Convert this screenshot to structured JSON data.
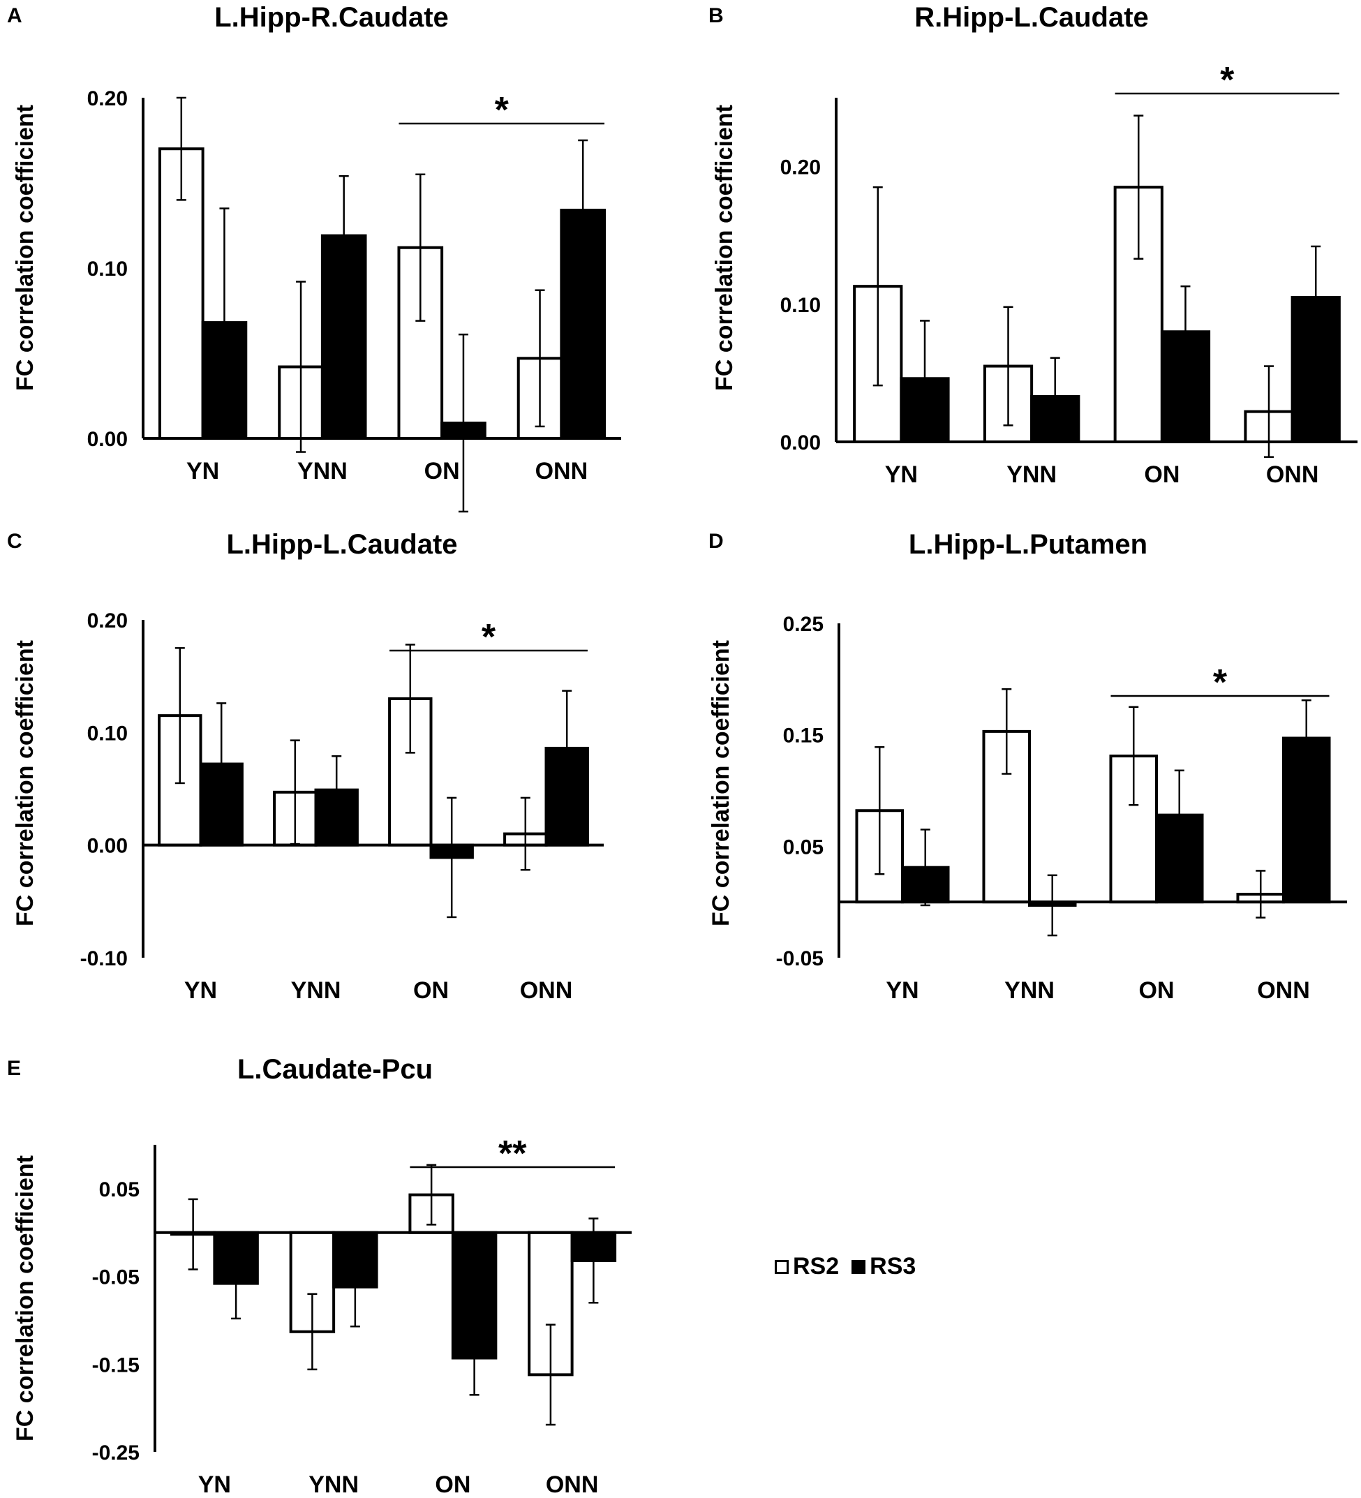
{
  "legend": [
    {
      "label": "RS2",
      "color": "#ffffff"
    },
    {
      "label": "RS3",
      "color": "#000000"
    }
  ],
  "colors": {
    "rs2": "#ffffff",
    "rs3": "#000000",
    "stroke": "#000000"
  },
  "chart_data": [
    {
      "panel": "A",
      "type": "bar",
      "title": "L.Hipp-R.Caudate",
      "ylabel": "FC correlation coefficient",
      "xlabel": "",
      "categories": [
        "YN",
        "YNN",
        "ON",
        "ONN"
      ],
      "ylim": [
        0.0,
        0.2
      ],
      "yticks": [
        "0.00",
        "0.10",
        "0.20"
      ],
      "series": [
        {
          "name": "RS2",
          "values": [
            0.17,
            0.042,
            0.112,
            0.047
          ],
          "errors": [
            0.03,
            0.05,
            0.043,
            0.04
          ]
        },
        {
          "name": "RS3",
          "values": [
            0.068,
            0.119,
            0.009,
            0.134
          ],
          "errors": [
            0.067,
            0.035,
            0.052,
            0.041
          ]
        }
      ],
      "significance": {
        "from": "ON",
        "to": "ONN",
        "label": "*"
      }
    },
    {
      "panel": "B",
      "type": "bar",
      "title": "R.Hipp-L.Caudate",
      "ylabel": "FC correlation coefficient",
      "xlabel": "",
      "categories": [
        "YN",
        "YNN",
        "ON",
        "ONN"
      ],
      "ylim": [
        0.0,
        0.25
      ],
      "yticks": [
        "0.00",
        "0.10",
        "0.20"
      ],
      "series": [
        {
          "name": "RS2",
          "values": [
            0.113,
            0.055,
            0.185,
            0.022
          ],
          "errors": [
            0.072,
            0.043,
            0.052,
            0.033
          ]
        },
        {
          "name": "RS3",
          "values": [
            0.046,
            0.033,
            0.08,
            0.105
          ],
          "errors": [
            0.042,
            0.028,
            0.033,
            0.037
          ]
        }
      ],
      "significance": {
        "from": "ON",
        "to": "ONN",
        "label": "*"
      }
    },
    {
      "panel": "C",
      "type": "bar",
      "title": "L.Hipp-L.Caudate",
      "ylabel": "FC correlation coefficient",
      "xlabel": "",
      "categories": [
        "YN",
        "YNN",
        "ON",
        "ONN"
      ],
      "ylim": [
        -0.1,
        0.2
      ],
      "yticks": [
        "-0.10",
        "0.00",
        "0.10",
        "0.20"
      ],
      "series": [
        {
          "name": "RS2",
          "values": [
            0.115,
            0.047,
            0.13,
            0.01
          ],
          "errors": [
            0.06,
            0.046,
            0.048,
            0.032
          ]
        },
        {
          "name": "RS3",
          "values": [
            0.072,
            0.049,
            -0.011,
            0.086
          ],
          "errors": [
            0.054,
            0.03,
            0.053,
            0.051
          ]
        }
      ],
      "significance": {
        "from": "ON",
        "to": "ONN",
        "label": "*"
      }
    },
    {
      "panel": "D",
      "type": "bar",
      "title": "L.Hipp-L.Putamen",
      "ylabel": "FC correlation coefficient",
      "xlabel": "",
      "categories": [
        "YN",
        "YNN",
        "ON",
        "ONN"
      ],
      "ylim": [
        -0.05,
        0.25
      ],
      "yticks": [
        "-0.05",
        "0.05",
        "0.15",
        "0.25"
      ],
      "series": [
        {
          "name": "RS2",
          "values": [
            0.082,
            0.153,
            0.131,
            0.007
          ],
          "errors": [
            0.057,
            0.038,
            0.044,
            0.021
          ]
        },
        {
          "name": "RS3",
          "values": [
            0.031,
            -0.003,
            0.078,
            0.147
          ],
          "errors": [
            0.034,
            0.027,
            0.04,
            0.034
          ]
        }
      ],
      "significance": {
        "from": "ON",
        "to": "ONN",
        "label": "*"
      }
    },
    {
      "panel": "E",
      "type": "bar",
      "title": "L.Caudate-Pcu",
      "ylabel": "FC correlation coefficient",
      "xlabel": "",
      "categories": [
        "YN",
        "YNN",
        "ON",
        "ONN"
      ],
      "ylim": [
        -0.25,
        0.1
      ],
      "yticks": [
        "-0.25",
        "-0.15",
        "-0.05",
        "0.05"
      ],
      "series": [
        {
          "name": "RS2",
          "values": [
            -0.002,
            -0.113,
            0.043,
            -0.162
          ],
          "errors": [
            0.04,
            0.043,
            0.034,
            0.057
          ]
        },
        {
          "name": "RS3",
          "values": [
            -0.058,
            -0.062,
            -0.143,
            -0.032
          ],
          "errors": [
            0.04,
            0.045,
            0.042,
            0.048
          ]
        }
      ],
      "significance": {
        "from": "ON",
        "to": "ONN",
        "label": "**"
      }
    }
  ]
}
